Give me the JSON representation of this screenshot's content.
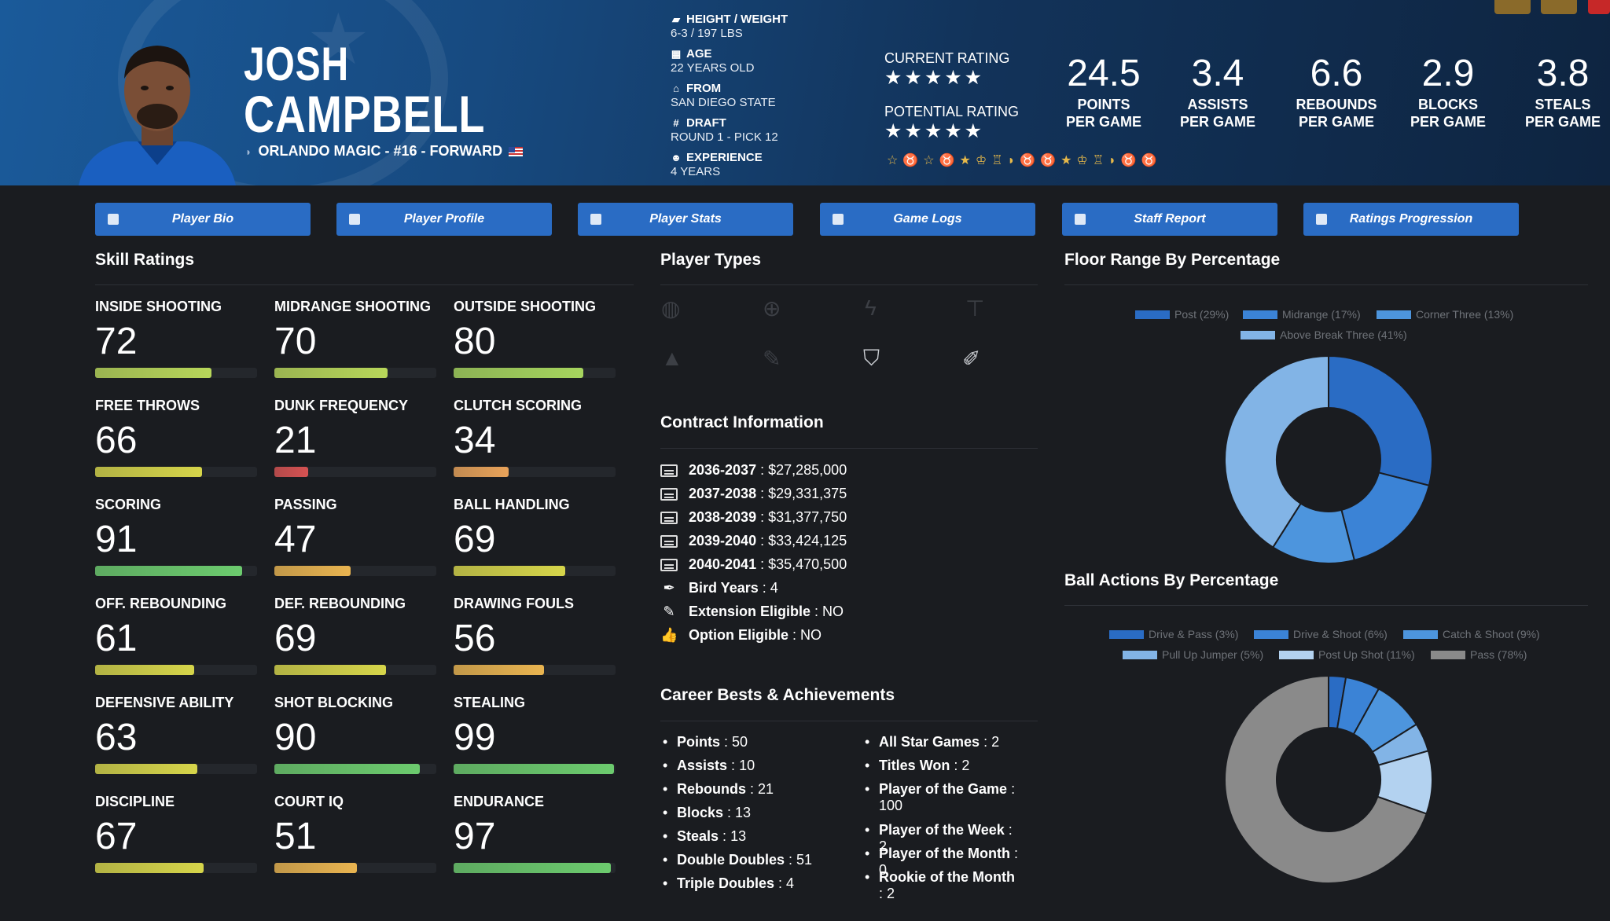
{
  "header": {
    "first_name": "JOSH",
    "last_name": "CAMPBELL",
    "team_line": "ORLANDO MAGIC - #16 - FORWARD",
    "info": [
      {
        "label": "HEIGHT / WEIGHT",
        "value": "6-3 / 197 LBS",
        "icon": "ruler-icon"
      },
      {
        "label": "AGE",
        "value": "22 YEARS OLD",
        "icon": "calendar-icon"
      },
      {
        "label": "FROM",
        "value": "SAN DIEGO STATE",
        "icon": "school-icon"
      },
      {
        "label": "DRAFT",
        "value": "ROUND 1 - PICK 12",
        "icon": "hash-icon"
      },
      {
        "label": "EXPERIENCE",
        "value": "4 YEARS",
        "icon": "users-icon"
      }
    ],
    "current_rating_label": "CURRENT RATING",
    "current_rating_stars": "★★★★★",
    "current_rating_value": 5,
    "potential_rating_label": "POTENTIAL RATING",
    "potential_rating_stars": "★★★★★",
    "potential_rating_value": 5,
    "achievement_icons": "☆♉☆♉★♔♖◗♉♉★♔♖◗♉♉",
    "stats": [
      {
        "value": "24.5",
        "line1": "POINTS",
        "line2": "PER GAME"
      },
      {
        "value": "3.4",
        "line1": "ASSISTS",
        "line2": "PER GAME"
      },
      {
        "value": "6.6",
        "line1": "REBOUNDS",
        "line2": "PER GAME"
      },
      {
        "value": "2.9",
        "line1": "BLOCKS",
        "line2": "PER GAME"
      },
      {
        "value": "3.8",
        "line1": "STEALS",
        "line2": "PER GAME"
      }
    ]
  },
  "tabs": [
    {
      "label": "Player Bio",
      "icon": "id-card-icon"
    },
    {
      "label": "Player Profile",
      "icon": "profile-icon"
    },
    {
      "label": "Player Stats",
      "icon": "bar-chart-icon"
    },
    {
      "label": "Game Logs",
      "icon": "clipboard-icon"
    },
    {
      "label": "Staff Report",
      "icon": "comment-icon"
    },
    {
      "label": "Ratings Progression",
      "icon": "line-chart-icon"
    }
  ],
  "skills": {
    "title": "Skill Ratings",
    "items": [
      {
        "name": "INSIDE SHOOTING",
        "value": 72,
        "color": "#b8d75a"
      },
      {
        "name": "MIDRANGE SHOOTING",
        "value": 70,
        "color": "#b8d75a"
      },
      {
        "name": "OUTSIDE SHOOTING",
        "value": 80,
        "color": "#a6d55e"
      },
      {
        "name": "FREE THROWS",
        "value": 66,
        "color": "#d6d54a"
      },
      {
        "name": "DUNK FREQUENCY",
        "value": 21,
        "color": "#d65252"
      },
      {
        "name": "CLUTCH SCORING",
        "value": 34,
        "color": "#e9a35a"
      },
      {
        "name": "SCORING",
        "value": 91,
        "color": "#6ccb6e"
      },
      {
        "name": "PASSING",
        "value": 47,
        "color": "#e9b450"
      },
      {
        "name": "BALL HANDLING",
        "value": 69,
        "color": "#d6d54a"
      },
      {
        "name": "OFF. REBOUNDING",
        "value": 61,
        "color": "#d6d54a"
      },
      {
        "name": "DEF. REBOUNDING",
        "value": 69,
        "color": "#d6d54a"
      },
      {
        "name": "DRAWING FOULS",
        "value": 56,
        "color": "#e9b450"
      },
      {
        "name": "DEFENSIVE ABILITY",
        "value": 63,
        "color": "#d6d54a"
      },
      {
        "name": "SHOT BLOCKING",
        "value": 90,
        "color": "#6ccb6e"
      },
      {
        "name": "STEALING",
        "value": 99,
        "color": "#6ccb6e"
      },
      {
        "name": "DISCIPLINE",
        "value": 67,
        "color": "#d6d54a"
      },
      {
        "name": "COURT IQ",
        "value": 51,
        "color": "#e9b450"
      },
      {
        "name": "ENDURANCE",
        "value": 97,
        "color": "#6ccb6e"
      }
    ]
  },
  "player_types": {
    "title": "Player Types",
    "icons": [
      "basketball-icon",
      "crosshair-icon",
      "bolt-icon",
      "paint-roller-icon",
      "cone-icon",
      "magic-wand-icon",
      "shield-icon",
      "broom-icon"
    ]
  },
  "contract": {
    "title": "Contract Information",
    "years": [
      {
        "season": "2036-2037",
        "amount": "$27,285,000"
      },
      {
        "season": "2037-2038",
        "amount": "$29,331,375"
      },
      {
        "season": "2038-2039",
        "amount": "$31,377,750"
      },
      {
        "season": "2039-2040",
        "amount": "$33,424,125"
      },
      {
        "season": "2040-2041",
        "amount": "$35,470,500"
      }
    ],
    "extras": [
      {
        "label": "Bird Years",
        "value": "4",
        "icon": "feather-icon"
      },
      {
        "label": "Extension Eligible",
        "value": "NO",
        "icon": "edit-icon"
      },
      {
        "label": "Option Eligible",
        "value": "NO",
        "icon": "thumbs-up-icon"
      }
    ]
  },
  "career": {
    "title": "Career Bests & Achievements",
    "left": [
      {
        "label": "Points",
        "value": "50"
      },
      {
        "label": "Assists",
        "value": "10"
      },
      {
        "label": "Rebounds",
        "value": "21"
      },
      {
        "label": "Blocks",
        "value": "13"
      },
      {
        "label": "Steals",
        "value": "13"
      },
      {
        "label": "Double Doubles",
        "value": "51"
      },
      {
        "label": "Triple Doubles",
        "value": "4"
      }
    ],
    "right": [
      {
        "label": "All Star Games",
        "value": "2"
      },
      {
        "label": "Titles Won",
        "value": "2"
      },
      {
        "label": "Player of the Game",
        "value": "100"
      },
      {
        "label": "Player of the Week",
        "value": "2"
      },
      {
        "label": "Player of the Month",
        "value": "0"
      },
      {
        "label": "Rookie of the Month",
        "value": "2"
      }
    ]
  },
  "chart_data": [
    {
      "type": "pie",
      "title": "Floor Range By Percentage",
      "legend_position": "top",
      "categories": [
        "Post (29%)",
        "Midrange (17%)",
        "Corner Three (13%)",
        "Above Break Three (41%)"
      ],
      "values": [
        29,
        17,
        13,
        41
      ],
      "colors": [
        "#2a6cc4",
        "#3b83d6",
        "#4d95dd",
        "#82b4e6"
      ]
    },
    {
      "type": "pie",
      "title": "Ball Actions By Percentage",
      "legend_position": "top",
      "categories": [
        "Drive & Pass (3%)",
        "Drive & Shoot (6%)",
        "Catch & Shoot (9%)",
        "Pull Up Jumper (5%)",
        "Post Up Shot (11%)",
        "Pass (78%)"
      ],
      "values": [
        3,
        6,
        9,
        5,
        11,
        78
      ],
      "colors": [
        "#2a6cc4",
        "#3b83d6",
        "#4d95dd",
        "#82b4e6",
        "#b3d2f0",
        "#8a8a8a"
      ]
    }
  ]
}
